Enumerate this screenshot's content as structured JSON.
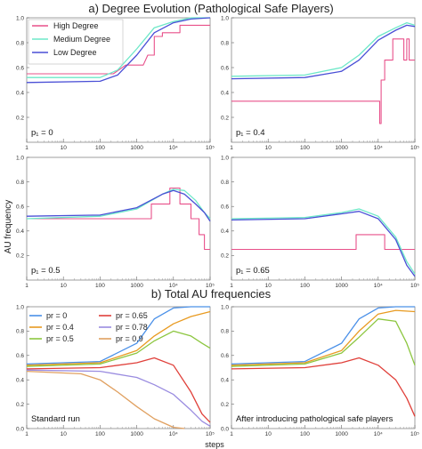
{
  "figure": {
    "title_a": "a) Degree Evolution (Pathological Safe Players)",
    "title_b": "b) Total AU frequencies",
    "ylabel": "AU frequency",
    "xlabel": "steps"
  },
  "chart_data": [
    {
      "id": "a1",
      "type": "line",
      "annotation": "p₁ = 0",
      "xscale": "log",
      "xlim": [
        1,
        100000
      ],
      "ylim": [
        0,
        1.0
      ],
      "x_ticks": [
        "1",
        "10",
        "100",
        "1000",
        "10⁴",
        "10⁵"
      ],
      "y_ticks": [
        "0.2",
        "0.4",
        "0.6",
        "0.8",
        "1.0"
      ],
      "legend": {
        "position": "top-left",
        "entries": [
          "High Degree",
          "Medium Degree",
          "Low Degree"
        ]
      },
      "series": [
        {
          "name": "High Degree",
          "color": "#e8508a",
          "step": true,
          "x": [
            1,
            230,
            500,
            1500,
            2000,
            3000,
            3000,
            5000,
            5000,
            15000,
            15000,
            100000
          ],
          "y": [
            0.55,
            0.55,
            0.62,
            0.62,
            0.7,
            0.7,
            0.85,
            0.85,
            0.88,
            0.88,
            0.94,
            0.94
          ]
        },
        {
          "name": "Medium Degree",
          "color": "#6de8c8",
          "x": [
            1,
            100,
            300,
            1000,
            3000,
            10000,
            30000,
            100000
          ],
          "y": [
            0.52,
            0.52,
            0.58,
            0.75,
            0.92,
            0.97,
            1.0,
            1.0
          ]
        },
        {
          "name": "Low Degree",
          "color": "#4a4fd6",
          "x": [
            1,
            100,
            300,
            1000,
            3000,
            10000,
            30000,
            100000
          ],
          "y": [
            0.48,
            0.49,
            0.54,
            0.7,
            0.88,
            0.96,
            0.99,
            1.0
          ]
        }
      ]
    },
    {
      "id": "a2",
      "type": "line",
      "annotation": "p₁ = 0.4",
      "xscale": "log",
      "xlim": [
        1,
        100000
      ],
      "ylim": [
        0,
        1.0
      ],
      "x_ticks": [
        "1",
        "10",
        "100",
        "1000",
        "10⁴",
        "10⁵"
      ],
      "y_ticks": [
        "0.2",
        "0.4",
        "0.6",
        "0.8",
        "1.0"
      ],
      "series": [
        {
          "name": "High Degree",
          "color": "#e8508a",
          "step": true,
          "x": [
            1,
            11000,
            11000,
            12000,
            12000,
            15000,
            15000,
            25000,
            25000,
            50000,
            50000,
            60000,
            60000,
            70000,
            70000,
            100000
          ],
          "y": [
            0.33,
            0.33,
            0.15,
            0.15,
            0.5,
            0.5,
            0.66,
            0.66,
            0.83,
            0.83,
            0.66,
            0.66,
            0.83,
            0.83,
            0.66,
            0.66
          ]
        },
        {
          "name": "Medium Degree",
          "color": "#6de8c8",
          "x": [
            1,
            100,
            1000,
            3000,
            10000,
            30000,
            60000,
            100000
          ],
          "y": [
            0.53,
            0.54,
            0.6,
            0.7,
            0.85,
            0.92,
            0.96,
            0.94
          ]
        },
        {
          "name": "Low Degree",
          "color": "#4a4fd6",
          "x": [
            1,
            100,
            1000,
            3000,
            10000,
            30000,
            60000,
            100000
          ],
          "y": [
            0.51,
            0.52,
            0.57,
            0.66,
            0.82,
            0.9,
            0.94,
            0.93
          ]
        }
      ]
    },
    {
      "id": "a3",
      "type": "line",
      "annotation": "p₁ = 0.5",
      "xscale": "log",
      "xlim": [
        1,
        100000
      ],
      "ylim": [
        0,
        1.0
      ],
      "x_ticks": [
        "1",
        "10",
        "100",
        "1000",
        "10⁴",
        "10⁵"
      ],
      "y_ticks": [
        "0.2",
        "0.4",
        "0.6",
        "0.8",
        "1.0"
      ],
      "series": [
        {
          "name": "High Degree",
          "color": "#e8508a",
          "step": true,
          "x": [
            1,
            2500,
            2500,
            8000,
            8000,
            15000,
            15000,
            30000,
            30000,
            50000,
            50000,
            70000,
            70000,
            100000
          ],
          "y": [
            0.5,
            0.5,
            0.62,
            0.62,
            0.75,
            0.75,
            0.62,
            0.62,
            0.5,
            0.5,
            0.37,
            0.37,
            0.25,
            0.25
          ]
        },
        {
          "name": "Medium Degree",
          "color": "#6de8c8",
          "x": [
            1,
            100,
            1000,
            5000,
            10000,
            20000,
            40000,
            70000,
            100000
          ],
          "y": [
            0.5,
            0.52,
            0.58,
            0.7,
            0.74,
            0.73,
            0.65,
            0.55,
            0.5
          ]
        },
        {
          "name": "Low Degree",
          "color": "#4a4fd6",
          "x": [
            1,
            100,
            1000,
            5000,
            10000,
            20000,
            40000,
            70000,
            100000
          ],
          "y": [
            0.52,
            0.53,
            0.59,
            0.7,
            0.73,
            0.7,
            0.62,
            0.55,
            0.48
          ]
        }
      ]
    },
    {
      "id": "a4",
      "type": "line",
      "annotation": "p₁ = 0.65",
      "xscale": "log",
      "xlim": [
        1,
        100000
      ],
      "ylim": [
        0,
        1.0
      ],
      "x_ticks": [
        "1",
        "10",
        "100",
        "1000",
        "10⁴",
        "10⁵"
      ],
      "y_ticks": [
        "0.2",
        "0.4",
        "0.6",
        "0.8",
        "1.0"
      ],
      "series": [
        {
          "name": "High Degree",
          "color": "#e8508a",
          "step": true,
          "x": [
            1,
            2500,
            2500,
            15000,
            15000,
            100000
          ],
          "y": [
            0.25,
            0.25,
            0.37,
            0.37,
            0.25,
            0.25
          ]
        },
        {
          "name": "Medium Degree",
          "color": "#6de8c8",
          "x": [
            1,
            100,
            1000,
            3000,
            10000,
            30000,
            60000,
            100000
          ],
          "y": [
            0.5,
            0.51,
            0.55,
            0.58,
            0.52,
            0.35,
            0.15,
            0.05
          ]
        },
        {
          "name": "Low Degree",
          "color": "#4a4fd6",
          "x": [
            1,
            100,
            1000,
            3000,
            10000,
            30000,
            60000,
            100000
          ],
          "y": [
            0.49,
            0.5,
            0.54,
            0.56,
            0.5,
            0.33,
            0.12,
            0.03
          ]
        }
      ]
    },
    {
      "id": "b1",
      "type": "line",
      "annotation": "Standard run",
      "xscale": "log",
      "xlim": [
        1,
        100000
      ],
      "ylim": [
        0,
        1.0
      ],
      "x_ticks": [
        "1",
        "10",
        "100",
        "1000",
        "10⁴",
        "10⁵"
      ],
      "y_ticks": [
        "0.0",
        "0.2",
        "0.4",
        "0.6",
        "0.8",
        "1.0"
      ],
      "legend": {
        "position": "top-left",
        "entries": [
          "pr = 0",
          "pr = 0.4",
          "pr = 0.5",
          "pr = 0.65",
          "pr = 0.78",
          "pr = 0.9"
        ]
      },
      "series": [
        {
          "name": "pr = 0",
          "color": "#4a90e8",
          "x": [
            1,
            100,
            1000,
            3000,
            10000,
            30000,
            100000
          ],
          "y": [
            0.53,
            0.55,
            0.7,
            0.9,
            0.99,
            1.0,
            1.0
          ]
        },
        {
          "name": "pr = 0.4",
          "color": "#e89a20",
          "x": [
            1,
            100,
            1000,
            3000,
            10000,
            30000,
            100000
          ],
          "y": [
            0.52,
            0.54,
            0.64,
            0.76,
            0.86,
            0.92,
            0.96
          ]
        },
        {
          "name": "pr = 0.5",
          "color": "#8cc63f",
          "x": [
            1,
            100,
            1000,
            3000,
            10000,
            30000,
            60000,
            100000
          ],
          "y": [
            0.51,
            0.53,
            0.62,
            0.72,
            0.8,
            0.76,
            0.7,
            0.66
          ]
        },
        {
          "name": "pr = 0.65",
          "color": "#e0403a",
          "x": [
            1,
            100,
            1000,
            3000,
            10000,
            30000,
            60000,
            100000
          ],
          "y": [
            0.49,
            0.5,
            0.54,
            0.58,
            0.52,
            0.3,
            0.12,
            0.05
          ]
        },
        {
          "name": "pr = 0.78",
          "color": "#9a8ce0",
          "x": [
            1,
            100,
            1000,
            3000,
            10000,
            30000,
            60000,
            100000
          ],
          "y": [
            0.48,
            0.47,
            0.42,
            0.36,
            0.28,
            0.15,
            0.06,
            0.02
          ]
        },
        {
          "name": "pr = 0.9",
          "color": "#e0a060",
          "x": [
            1,
            30,
            100,
            300,
            1000,
            3000,
            10000,
            20000
          ],
          "y": [
            0.47,
            0.45,
            0.4,
            0.3,
            0.18,
            0.08,
            0.01,
            0.0
          ]
        }
      ]
    },
    {
      "id": "b2",
      "type": "line",
      "annotation": "After introducing pathological safe players",
      "xscale": "log",
      "xlim": [
        1,
        100000
      ],
      "ylim": [
        0,
        1.0
      ],
      "x_ticks": [
        "1",
        "10",
        "100",
        "1000",
        "10⁴",
        "10⁵"
      ],
      "y_ticks": [
        "0.0",
        "0.2",
        "0.4",
        "0.6",
        "0.8",
        "1.0"
      ],
      "series": [
        {
          "name": "pr = 0",
          "color": "#4a90e8",
          "x": [
            1,
            100,
            1000,
            3000,
            10000,
            30000,
            100000
          ],
          "y": [
            0.53,
            0.55,
            0.7,
            0.9,
            0.99,
            1.0,
            1.0
          ]
        },
        {
          "name": "pr = 0.4",
          "color": "#e89a20",
          "x": [
            1,
            100,
            1000,
            3000,
            10000,
            30000,
            100000
          ],
          "y": [
            0.52,
            0.54,
            0.64,
            0.8,
            0.94,
            0.97,
            0.96
          ]
        },
        {
          "name": "pr = 0.5",
          "color": "#8cc63f",
          "x": [
            1,
            100,
            1000,
            3000,
            10000,
            30000,
            60000,
            100000
          ],
          "y": [
            0.51,
            0.53,
            0.62,
            0.75,
            0.9,
            0.88,
            0.7,
            0.52
          ]
        },
        {
          "name": "pr = 0.65",
          "color": "#e0403a",
          "x": [
            1,
            100,
            1000,
            3000,
            10000,
            30000,
            60000,
            100000
          ],
          "y": [
            0.49,
            0.5,
            0.54,
            0.58,
            0.52,
            0.4,
            0.25,
            0.1
          ]
        }
      ]
    }
  ]
}
